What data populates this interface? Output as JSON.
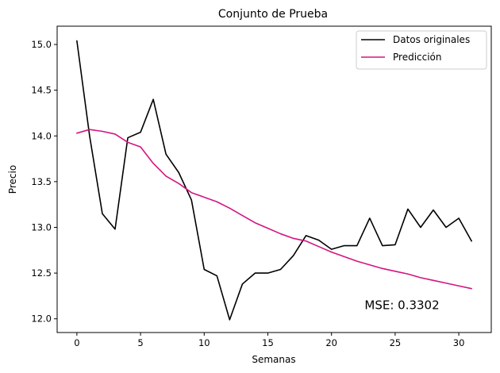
{
  "chart_data": {
    "type": "line",
    "title": "Conjunto de Prueba",
    "xlabel": "Semanas",
    "ylabel": "Precio",
    "xlim": [
      -1.55,
      32.55
    ],
    "ylim": [
      11.85,
      15.2
    ],
    "xticks": [
      0,
      5,
      10,
      15,
      20,
      25,
      30
    ],
    "yticks": [
      12.0,
      12.5,
      13.0,
      13.5,
      14.0,
      14.5,
      15.0
    ],
    "ytick_labels": [
      "12.0",
      "12.5",
      "13.0",
      "13.5",
      "14.0",
      "14.5",
      "15.0"
    ],
    "grid": false,
    "legend": "top-right",
    "x": [
      0,
      1,
      2,
      3,
      4,
      5,
      6,
      7,
      8,
      9,
      10,
      11,
      12,
      13,
      14,
      15,
      16,
      17,
      18,
      19,
      20,
      21,
      22,
      23,
      24,
      25,
      26,
      27,
      28,
      29,
      30,
      31
    ],
    "series": [
      {
        "name": "Datos originales",
        "color": "#000000",
        "values": [
          15.04,
          14.0,
          13.15,
          12.98,
          13.98,
          14.04,
          14.4,
          13.8,
          13.6,
          13.3,
          12.54,
          12.47,
          11.99,
          12.38,
          12.5,
          12.5,
          12.54,
          12.69,
          12.91,
          12.86,
          12.76,
          12.8,
          12.8,
          13.1,
          12.8,
          12.81,
          13.2,
          13.0,
          13.19,
          13.0,
          13.1,
          12.85
        ]
      },
      {
        "name": "Predicción",
        "color": "#d3157f",
        "values": [
          14.03,
          14.07,
          14.05,
          14.02,
          13.93,
          13.88,
          13.7,
          13.56,
          13.48,
          13.38,
          13.33,
          13.28,
          13.21,
          13.13,
          13.05,
          12.99,
          12.93,
          12.88,
          12.85,
          12.79,
          12.73,
          12.68,
          12.63,
          12.59,
          12.55,
          12.52,
          12.49,
          12.45,
          12.42,
          12.39,
          12.36,
          12.33
        ]
      }
    ],
    "annotations": [
      {
        "text": "MSE: 0.3302",
        "x": 22.6,
        "y": 12.15
      }
    ]
  }
}
